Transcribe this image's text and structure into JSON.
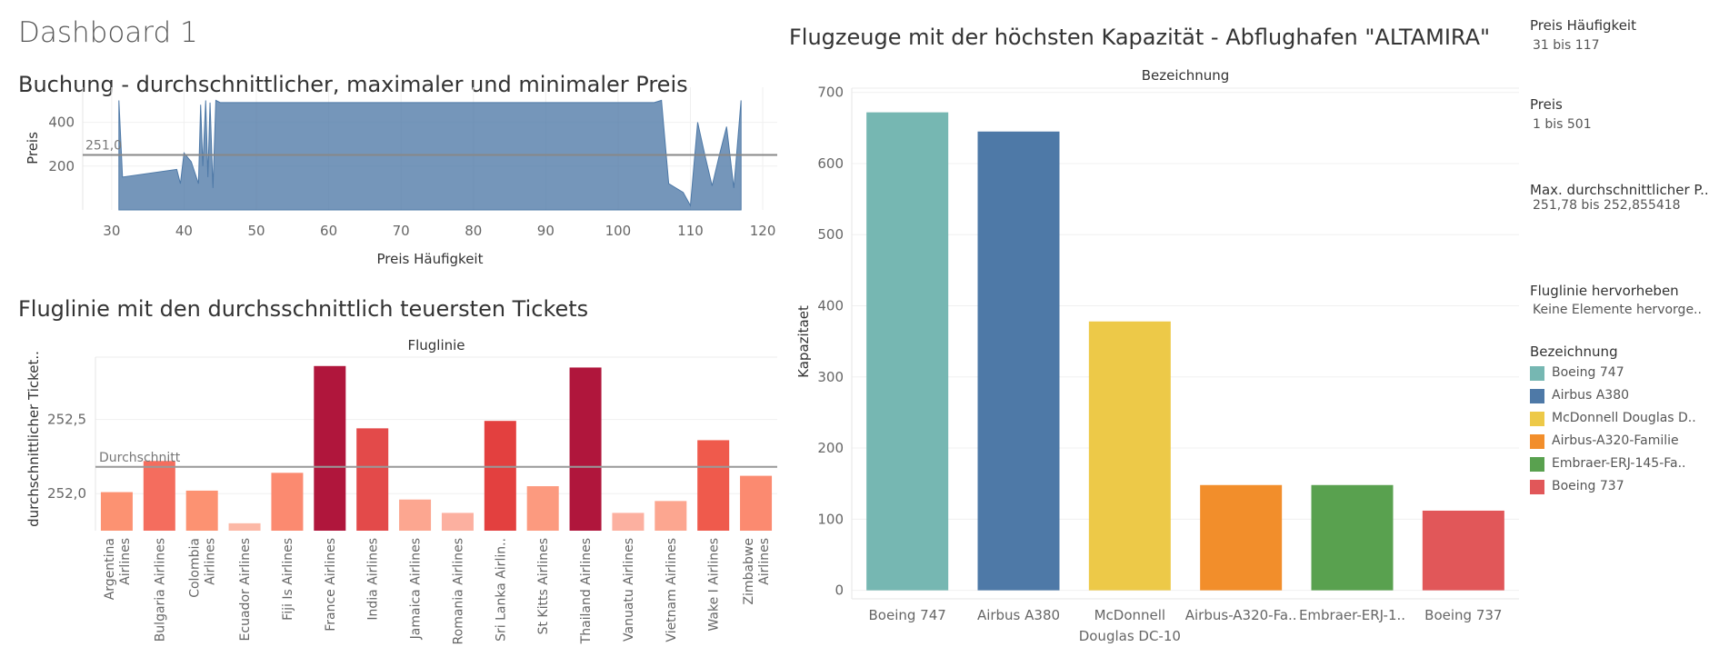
{
  "dashboard": {
    "title": "Dashboard 1"
  },
  "chart_data": [
    {
      "id": "buchung",
      "type": "area",
      "title": "Buchung - durchschnittlicher, maximaler und minimaler Preis",
      "xlabel": "Preis Häufigkeit",
      "ylabel": "Preis",
      "xlim": [
        26,
        122
      ],
      "ylim": [
        0,
        560
      ],
      "xticks": [
        "30",
        "40",
        "50",
        "60",
        "70",
        "80",
        "90",
        "100",
        "110",
        "120"
      ],
      "yticks": [
        "200",
        "400"
      ],
      "reference_line": {
        "value": 251,
        "label": "251,0"
      },
      "color": "#4e79a7",
      "x": [
        31,
        31.5,
        39,
        39.5,
        40,
        41,
        42,
        42.3,
        42.6,
        43,
        43.3,
        43.6,
        44,
        44.4,
        45,
        46,
        47,
        48,
        49,
        50,
        51,
        52,
        53,
        54,
        55,
        56,
        57,
        58,
        59,
        60,
        61,
        62,
        63,
        64,
        65,
        66,
        67,
        68,
        69,
        70,
        71,
        72,
        73,
        74,
        75,
        76,
        77,
        78,
        79,
        80,
        81,
        82,
        83,
        84,
        85,
        86,
        87,
        88,
        89,
        90,
        91,
        92,
        93,
        94,
        95,
        96,
        97,
        98,
        99,
        100,
        101,
        102,
        103,
        104,
        105,
        106,
        107,
        108,
        109,
        110,
        111,
        112,
        113,
        114,
        115,
        116,
        117
      ],
      "values": [
        500,
        150,
        185,
        120,
        260,
        220,
        120,
        480,
        200,
        500,
        150,
        490,
        100,
        500,
        490,
        490,
        490,
        490,
        490,
        490,
        490,
        490,
        490,
        490,
        490,
        490,
        490,
        490,
        490,
        490,
        490,
        490,
        490,
        490,
        490,
        490,
        490,
        490,
        490,
        490,
        490,
        490,
        490,
        490,
        490,
        490,
        490,
        490,
        490,
        490,
        490,
        490,
        490,
        490,
        490,
        490,
        490,
        490,
        490,
        490,
        490,
        490,
        490,
        490,
        490,
        490,
        490,
        490,
        490,
        490,
        490,
        490,
        490,
        490,
        490,
        500,
        120,
        100,
        80,
        20,
        400,
        250,
        110,
        250,
        380,
        100,
        500
      ]
    },
    {
      "id": "fluglinie",
      "type": "bar",
      "title": "Fluglinie mit den durchsschnittlich teuersten Tickets",
      "header": "Fluglinie",
      "ylabel": "durchschnittlicher Ticket..",
      "ylim": [
        251.75,
        252.92
      ],
      "yticks": [
        {
          "value": 252.0,
          "label": "252,0"
        },
        {
          "value": 252.5,
          "label": "252,5"
        }
      ],
      "reference_line": {
        "value": 252.18,
        "label": "Durchschnitt"
      },
      "categories": [
        {
          "lines": [
            "Argentina",
            "Airlines"
          ]
        },
        {
          "lines": [
            "Bulgaria Airlines"
          ]
        },
        {
          "lines": [
            "Colombia",
            "Airlines"
          ]
        },
        {
          "lines": [
            "Ecuador Airlines"
          ]
        },
        {
          "lines": [
            "Fiji Is Airlines"
          ]
        },
        {
          "lines": [
            "France Airlines"
          ]
        },
        {
          "lines": [
            "India Airlines"
          ]
        },
        {
          "lines": [
            "Jamaica Airlines"
          ]
        },
        {
          "lines": [
            "Romania Airlines"
          ]
        },
        {
          "lines": [
            "Sri Lanka Airlin.."
          ]
        },
        {
          "lines": [
            "St Kitts Airlines"
          ]
        },
        {
          "lines": [
            "Thailand Airlines"
          ]
        },
        {
          "lines": [
            "Vanuatu Airlines"
          ]
        },
        {
          "lines": [
            "Vietnam Airlines"
          ]
        },
        {
          "lines": [
            "Wake I Airlines"
          ]
        },
        {
          "lines": [
            "Zimbabwe",
            "Airlines"
          ]
        }
      ],
      "values": [
        252.01,
        252.22,
        252.02,
        251.8,
        252.14,
        252.86,
        252.44,
        251.96,
        251.87,
        252.49,
        252.05,
        252.85,
        251.87,
        251.95,
        252.36,
        252.12
      ],
      "colors": [
        "#fc9272",
        "#f46d5e",
        "#fc9272",
        "#fcb8a6",
        "#fb8a70",
        "#b0163c",
        "#e34a4a",
        "#fca690",
        "#fcb0a0",
        "#e3403f",
        "#fc9a7f",
        "#b0163c",
        "#fcb0a0",
        "#fca690",
        "#ef5a4c",
        "#fb8a70"
      ]
    },
    {
      "id": "flugzeuge",
      "type": "bar",
      "title": "Flugzeuge mit der höchsten Kapazität - Abflughafen \"ALTAMIRA\"",
      "header": "Bezeichnung",
      "ylabel": "Kapazitaet",
      "ylim": [
        -12,
        706
      ],
      "yticks": [
        "0",
        "100",
        "200",
        "300",
        "400",
        "500",
        "600",
        "700"
      ],
      "categories": [
        {
          "lines": [
            "Boeing 747"
          ]
        },
        {
          "lines": [
            "Airbus A380"
          ]
        },
        {
          "lines": [
            "McDonnell",
            "Douglas DC-10"
          ]
        },
        {
          "lines": [
            "Airbus-A320-Fa.."
          ]
        },
        {
          "lines": [
            "Embraer-ERJ-1.."
          ]
        },
        {
          "lines": [
            "Boeing 737"
          ]
        }
      ],
      "values": [
        672,
        645,
        378,
        148,
        148,
        112
      ],
      "colors": [
        "#76b7b2",
        "#4e79a7",
        "#edc948",
        "#f28e2b",
        "#59a14f",
        "#e15759"
      ]
    }
  ],
  "filters": [
    {
      "title": "Preis Häufigkeit",
      "value": "31 bis 117"
    },
    {
      "title": "Preis",
      "value": "1 bis 501"
    },
    {
      "title": "Max. durchschnittlicher P..",
      "value": "251,78 bis 252,855418"
    },
    {
      "title": "Fluglinie hervorheben",
      "value": "Keine Elemente hervorge.."
    }
  ],
  "legend": {
    "title": "Bezeichnung",
    "items": [
      {
        "label": "Boeing 747",
        "color": "#76b7b2"
      },
      {
        "label": "Airbus A380",
        "color": "#4e79a7"
      },
      {
        "label": "McDonnell Douglas D..",
        "color": "#edc948"
      },
      {
        "label": "Airbus-A320-Familie",
        "color": "#f28e2b"
      },
      {
        "label": "Embraer-ERJ-145-Fa..",
        "color": "#59a14f"
      },
      {
        "label": "Boeing 737",
        "color": "#e15759"
      }
    ]
  }
}
